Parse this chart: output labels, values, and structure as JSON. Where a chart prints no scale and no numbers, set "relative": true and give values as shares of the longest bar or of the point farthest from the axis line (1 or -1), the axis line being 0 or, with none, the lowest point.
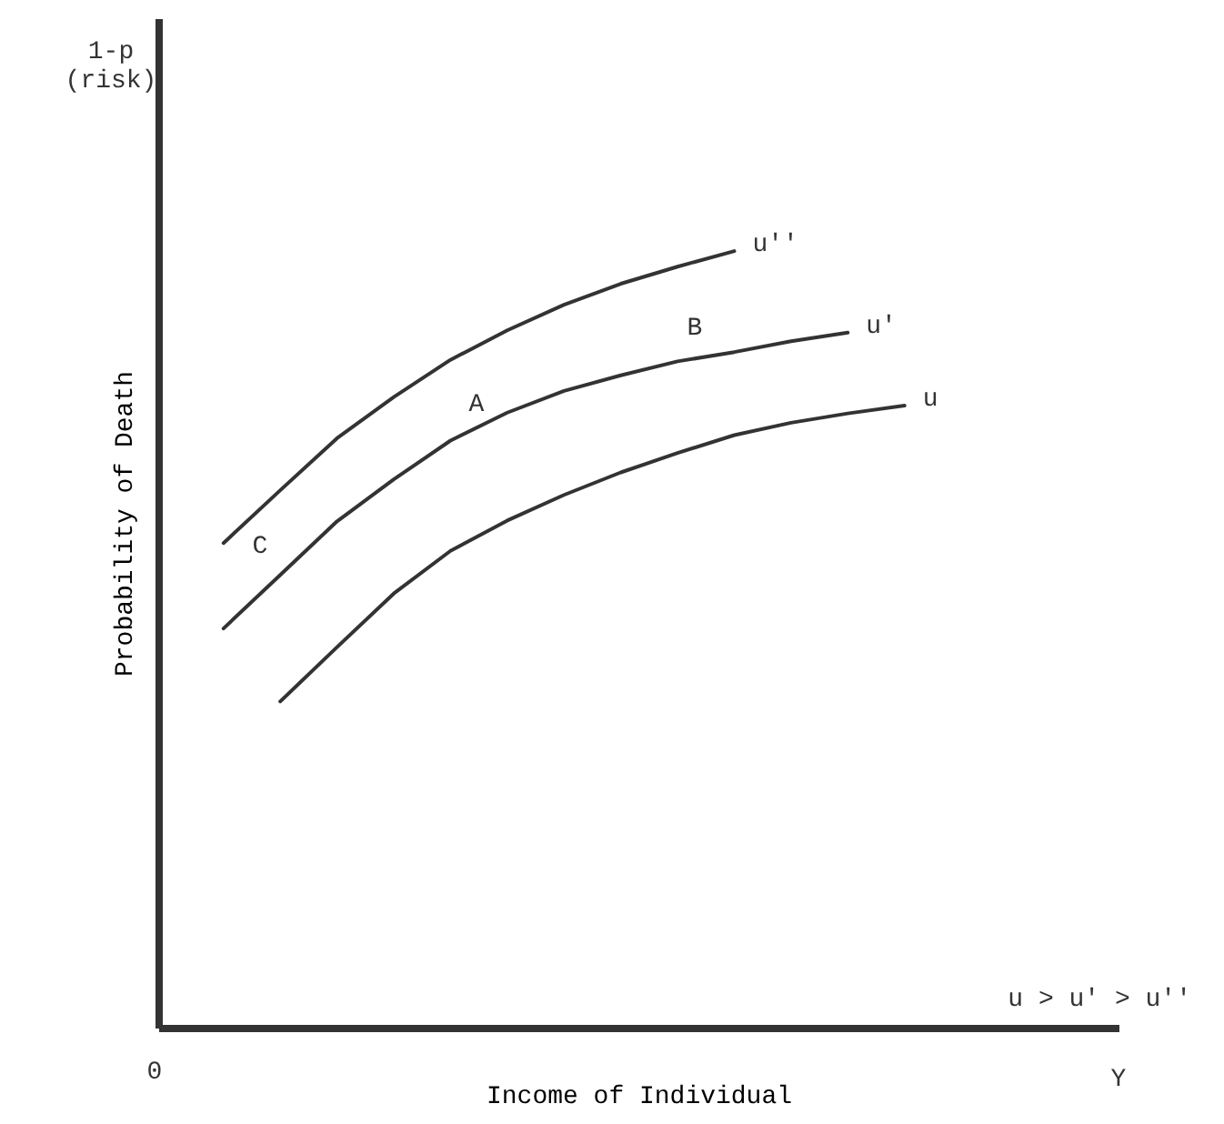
{
  "chart_data": {
    "type": "line",
    "relative": true,
    "xlabel": "Income of Individual",
    "ylabel": "Probability of Death",
    "grid": false,
    "line_style": "solid",
    "categories": [
      null,
      null,
      null,
      null,
      null,
      null,
      null,
      null,
      null,
      null,
      null,
      null,
      null
    ],
    "series": [
      {
        "name": "u''",
        "color": "#333333",
        "values": [
          0.624,
          0.692,
          0.759,
          0.812,
          0.86,
          0.898,
          0.931,
          0.958,
          0.98,
          1.0,
          null,
          null,
          null
        ]
      },
      {
        "name": "u'",
        "color": "#333333",
        "values": [
          0.514,
          0.583,
          0.652,
          0.706,
          0.756,
          0.792,
          0.82,
          0.84,
          0.858,
          0.87,
          0.884,
          0.895,
          null
        ]
      },
      {
        "name": "u",
        "color": "#333333",
        "values": [
          null,
          0.42,
          0.49,
          0.559,
          0.614,
          0.653,
          0.686,
          0.715,
          0.74,
          0.763,
          0.779,
          0.791,
          0.801
        ]
      }
    ],
    "annotations": [
      "1-p (risk)",
      "u > u' > u''",
      "Y",
      "0",
      "A",
      "B",
      "C"
    ]
  }
}
